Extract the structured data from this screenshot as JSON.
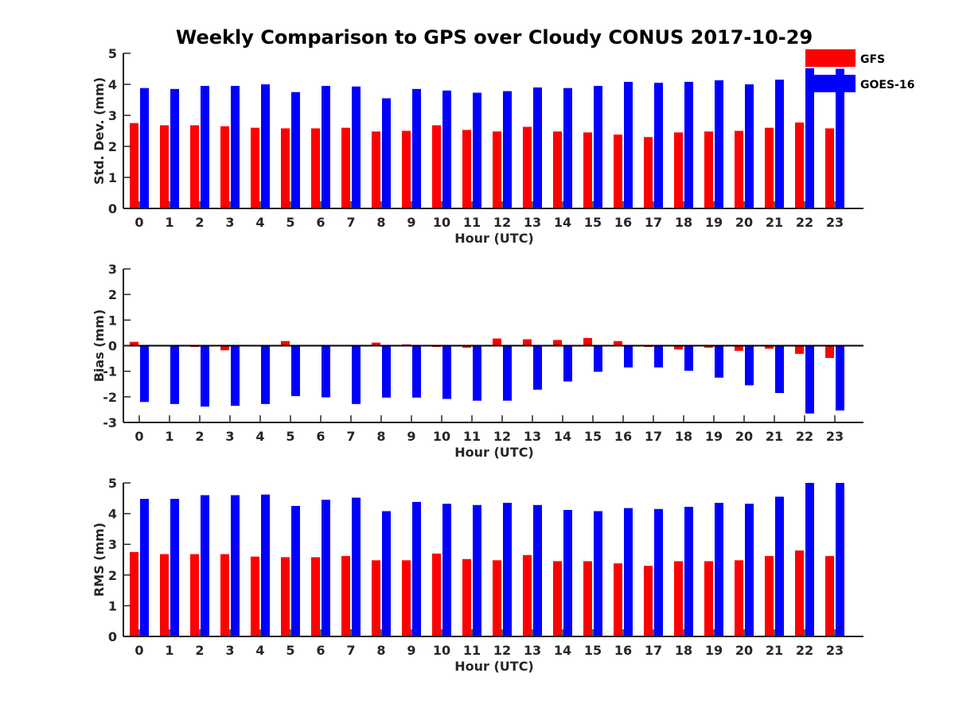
{
  "title": "Weekly Comparison to GPS over Cloudy CONUS 2017-10-29",
  "legend": [
    {
      "label": "GFS",
      "color": "#ff0000"
    },
    {
      "label": "GOES-16",
      "color": "#0000ff"
    }
  ],
  "chart_data": [
    {
      "type": "bar",
      "xlabel": "Hour (UTC)",
      "ylabel": "Std. Dev. (mm)",
      "ylim": [
        0,
        5
      ],
      "yticks": [
        "0",
        "1",
        "2",
        "3",
        "4",
        "5"
      ],
      "categories": [
        "0",
        "1",
        "2",
        "3",
        "4",
        "5",
        "6",
        "7",
        "8",
        "9",
        "10",
        "11",
        "12",
        "13",
        "14",
        "15",
        "16",
        "17",
        "18",
        "19",
        "20",
        "21",
        "22",
        "23"
      ],
      "series": [
        {
          "name": "GFS",
          "color": "#ff0000",
          "values": [
            2.75,
            2.68,
            2.68,
            2.65,
            2.6,
            2.58,
            2.58,
            2.6,
            2.48,
            2.5,
            2.68,
            2.53,
            2.48,
            2.63,
            2.48,
            2.45,
            2.38,
            2.3,
            2.45,
            2.48,
            2.5,
            2.6,
            2.77,
            2.58
          ]
        },
        {
          "name": "GOES-16",
          "color": "#0000ff",
          "values": [
            3.88,
            3.85,
            3.95,
            3.95,
            4.0,
            3.75,
            3.95,
            3.93,
            3.55,
            3.85,
            3.8,
            3.73,
            3.78,
            3.9,
            3.88,
            3.95,
            4.08,
            4.05,
            4.08,
            4.13,
            4.0,
            4.15,
            4.52,
            4.5
          ]
        }
      ]
    },
    {
      "type": "bar",
      "xlabel": "Hour (UTC)",
      "ylabel": "Bias (mm)",
      "ylim": [
        -3,
        3
      ],
      "yticks": [
        "-3",
        "-2",
        "-1",
        "0",
        "1",
        "2",
        "3"
      ],
      "categories": [
        "0",
        "1",
        "2",
        "3",
        "4",
        "5",
        "6",
        "7",
        "8",
        "9",
        "10",
        "11",
        "12",
        "13",
        "14",
        "15",
        "16",
        "17",
        "18",
        "19",
        "20",
        "21",
        "22",
        "23"
      ],
      "series": [
        {
          "name": "GFS",
          "color": "#ff0000",
          "values": [
            0.15,
            0.0,
            -0.05,
            -0.18,
            0.0,
            0.18,
            0.03,
            0.0,
            0.12,
            0.05,
            -0.05,
            -0.08,
            0.28,
            0.25,
            0.22,
            0.3,
            0.18,
            -0.05,
            -0.15,
            -0.08,
            -0.2,
            -0.12,
            -0.32,
            -0.48
          ]
        },
        {
          "name": "GOES-16",
          "color": "#0000ff",
          "values": [
            -2.2,
            -2.28,
            -2.38,
            -2.35,
            -2.28,
            -1.97,
            -2.02,
            -2.28,
            -2.03,
            -2.03,
            -2.08,
            -2.15,
            -2.15,
            -1.72,
            -1.4,
            -1.02,
            -0.85,
            -0.85,
            -0.98,
            -1.25,
            -1.55,
            -1.85,
            -2.65,
            -2.53
          ]
        }
      ]
    },
    {
      "type": "bar",
      "xlabel": "Hour (UTC)",
      "ylabel": "RMS (mm)",
      "ylim": [
        0,
        5
      ],
      "yticks": [
        "0",
        "1",
        "2",
        "3",
        "4",
        "5"
      ],
      "categories": [
        "0",
        "1",
        "2",
        "3",
        "4",
        "5",
        "6",
        "7",
        "8",
        "9",
        "10",
        "11",
        "12",
        "13",
        "14",
        "15",
        "16",
        "17",
        "18",
        "19",
        "20",
        "21",
        "22",
        "23"
      ],
      "series": [
        {
          "name": "GFS",
          "color": "#ff0000",
          "values": [
            2.75,
            2.68,
            2.68,
            2.68,
            2.6,
            2.58,
            2.58,
            2.62,
            2.48,
            2.48,
            2.7,
            2.52,
            2.48,
            2.65,
            2.45,
            2.45,
            2.38,
            2.3,
            2.45,
            2.45,
            2.48,
            2.62,
            2.8,
            2.62
          ]
        },
        {
          "name": "GOES-16",
          "color": "#0000ff",
          "values": [
            4.48,
            4.48,
            4.6,
            4.6,
            4.62,
            4.25,
            4.45,
            4.52,
            4.08,
            4.38,
            4.32,
            4.28,
            4.35,
            4.28,
            4.12,
            4.08,
            4.18,
            4.15,
            4.22,
            4.35,
            4.32,
            4.55,
            5.0,
            5.0
          ]
        }
      ]
    }
  ]
}
